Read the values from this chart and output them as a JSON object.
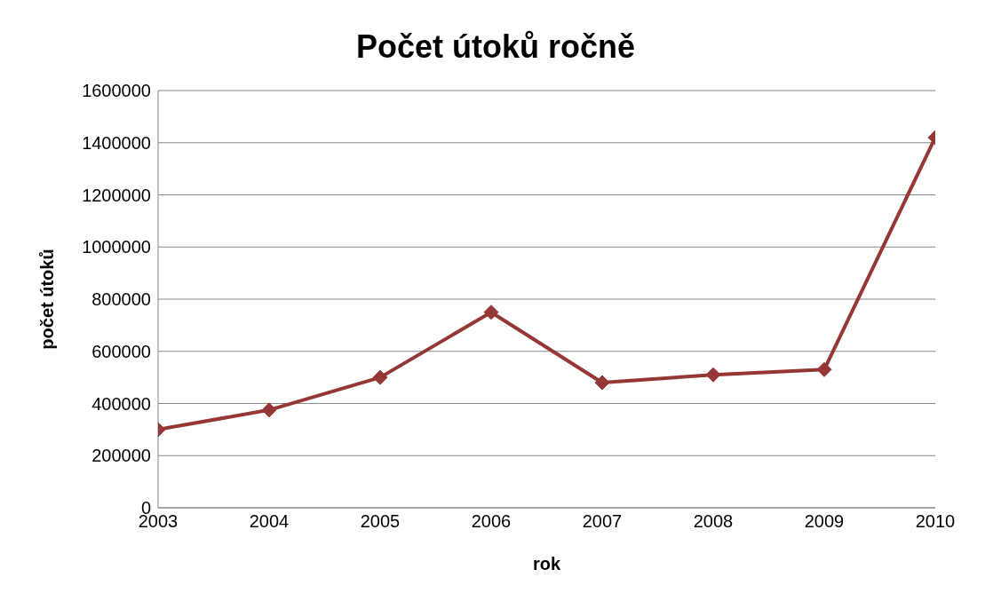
{
  "chart_data": {
    "type": "line",
    "title": "Počet útoků ročně",
    "xlabel": "rok",
    "ylabel": "počet útoků",
    "x": [
      2003,
      2004,
      2005,
      2006,
      2007,
      2008,
      2009,
      2010
    ],
    "series": [
      {
        "color": "#953735",
        "values": [
          300000,
          375000,
          500000,
          750000,
          480000,
          510000,
          530000,
          1420000
        ]
      }
    ],
    "xlim": [
      2003,
      2010
    ],
    "xticks": [
      2003,
      2004,
      2005,
      2006,
      2007,
      2008,
      2009,
      2010
    ],
    "ylim": [
      0,
      1600000
    ],
    "yticks": [
      0,
      200000,
      400000,
      600000,
      800000,
      1000000,
      1200000,
      1400000,
      1600000
    ],
    "grid": "y",
    "marker": "diamond",
    "line_style": "solid"
  }
}
